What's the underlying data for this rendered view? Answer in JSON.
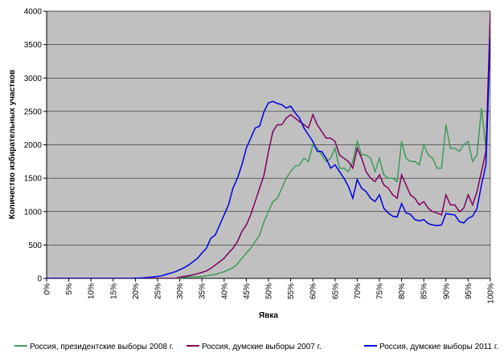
{
  "chart_data": {
    "type": "line",
    "y_label": "Количество избирательных участков",
    "x_label": "Явка",
    "x": [
      0,
      1,
      2,
      3,
      4,
      5,
      6,
      7,
      8,
      9,
      10,
      11,
      12,
      13,
      14,
      15,
      16,
      17,
      18,
      19,
      20,
      21,
      22,
      23,
      24,
      25,
      26,
      27,
      28,
      29,
      30,
      31,
      32,
      33,
      34,
      35,
      36,
      37,
      38,
      39,
      40,
      41,
      42,
      43,
      44,
      45,
      46,
      47,
      48,
      49,
      50,
      51,
      52,
      53,
      54,
      55,
      56,
      57,
      58,
      59,
      60,
      61,
      62,
      63,
      64,
      65,
      66,
      67,
      68,
      69,
      70,
      71,
      72,
      73,
      74,
      75,
      76,
      77,
      78,
      79,
      80,
      81,
      82,
      83,
      84,
      85,
      86,
      87,
      88,
      89,
      90,
      91,
      92,
      93,
      94,
      95,
      96,
      97,
      98,
      99,
      100
    ],
    "series": [
      {
        "name": "Россия, президентские выборы 2008 г.",
        "color": "#3f9a5a",
        "values": [
          0,
          0,
          0,
          0,
          0,
          0,
          0,
          0,
          0,
          0,
          0,
          0,
          0,
          0,
          0,
          0,
          0,
          0,
          0,
          0,
          0,
          0,
          0,
          0,
          0,
          0,
          0,
          0,
          0,
          0,
          10,
          15,
          20,
          25,
          25,
          30,
          40,
          50,
          60,
          80,
          100,
          130,
          160,
          220,
          300,
          380,
          450,
          550,
          650,
          850,
          1000,
          1150,
          1200,
          1350,
          1500,
          1600,
          1680,
          1700,
          1800,
          1750,
          2000,
          1950,
          1850,
          1750,
          1800,
          1950,
          1650,
          1650,
          1600,
          1750,
          2050,
          1850,
          1850,
          1800,
          1600,
          1800,
          1550,
          1500,
          1500,
          1450,
          2050,
          1800,
          1750,
          1750,
          1700,
          2000,
          1850,
          1800,
          1650,
          1650,
          2300,
          1950,
          1950,
          1900,
          2000,
          2050,
          1750,
          1850,
          2550,
          1950,
          3800
        ]
      },
      {
        "name": "Россия, думские выборы 2007 г.",
        "color": "#800060",
        "values": [
          0,
          0,
          0,
          0,
          0,
          0,
          0,
          0,
          0,
          0,
          0,
          0,
          0,
          0,
          0,
          0,
          0,
          0,
          0,
          0,
          0,
          0,
          0,
          0,
          0,
          0,
          0,
          0,
          0,
          0,
          20,
          30,
          40,
          55,
          70,
          90,
          110,
          150,
          200,
          250,
          300,
          380,
          450,
          550,
          700,
          800,
          950,
          1150,
          1350,
          1550,
          1900,
          2200,
          2300,
          2300,
          2400,
          2450,
          2400,
          2350,
          2300,
          2250,
          2450,
          2300,
          2200,
          2100,
          2100,
          2050,
          1850,
          1800,
          1750,
          1650,
          1950,
          1800,
          1600,
          1500,
          1450,
          1550,
          1400,
          1350,
          1250,
          1200,
          1550,
          1400,
          1250,
          1200,
          1100,
          1150,
          1050,
          1000,
          980,
          950,
          1250,
          1100,
          1100,
          1000,
          1050,
          1250,
          1100,
          1300,
          1600,
          1900,
          4000
        ]
      },
      {
        "name": "Россия, думские выборы 2011 г.",
        "color": "#0000e0",
        "values": [
          0,
          0,
          0,
          0,
          0,
          0,
          0,
          0,
          0,
          0,
          0,
          0,
          0,
          0,
          0,
          0,
          0,
          0,
          0,
          0,
          5,
          5,
          10,
          15,
          20,
          30,
          40,
          60,
          80,
          100,
          130,
          160,
          200,
          250,
          300,
          380,
          450,
          600,
          650,
          800,
          950,
          1100,
          1350,
          1500,
          1700,
          1950,
          2100,
          2250,
          2280,
          2500,
          2630,
          2650,
          2620,
          2600,
          2550,
          2580,
          2480,
          2400,
          2250,
          2150,
          2050,
          1900,
          1900,
          1800,
          1650,
          1700,
          1600,
          1500,
          1380,
          1200,
          1480,
          1350,
          1300,
          1200,
          1150,
          1250,
          1050,
          980,
          930,
          920,
          1120,
          980,
          960,
          880,
          860,
          880,
          820,
          800,
          790,
          800,
          970,
          960,
          950,
          850,
          830,
          900,
          930,
          1050,
          1400,
          1700,
          3600
        ]
      }
    ],
    "xlim": [
      0,
      100
    ],
    "ylim": [
      0,
      4000
    ],
    "yticks": [
      0,
      500,
      1000,
      1500,
      2000,
      2500,
      3000,
      3500,
      4000
    ],
    "xticks": [
      {
        "value": 0,
        "label": "0%"
      },
      {
        "value": 5,
        "label": "5%"
      },
      {
        "value": 10,
        "label": "10%"
      },
      {
        "value": 15,
        "label": "15%"
      },
      {
        "value": 20,
        "label": "20%"
      },
      {
        "value": 25,
        "label": "25%"
      },
      {
        "value": 30,
        "label": "30%"
      },
      {
        "value": 35,
        "label": "35%"
      },
      {
        "value": 40,
        "label": "40%"
      },
      {
        "value": 45,
        "label": "45%"
      },
      {
        "value": 50,
        "label": "50%"
      },
      {
        "value": 55,
        "label": "55%"
      },
      {
        "value": 60,
        "label": "60%"
      },
      {
        "value": 65,
        "label": "65%"
      },
      {
        "value": 70,
        "label": "70%"
      },
      {
        "value": 75,
        "label": "75%"
      },
      {
        "value": 80,
        "label": "80%"
      },
      {
        "value": 85,
        "label": "85%"
      },
      {
        "value": 90,
        "label": "90%"
      },
      {
        "value": 95,
        "label": "95%"
      },
      {
        "value": 100,
        "label": "100%"
      }
    ],
    "grid": true,
    "legend": "bottom"
  }
}
